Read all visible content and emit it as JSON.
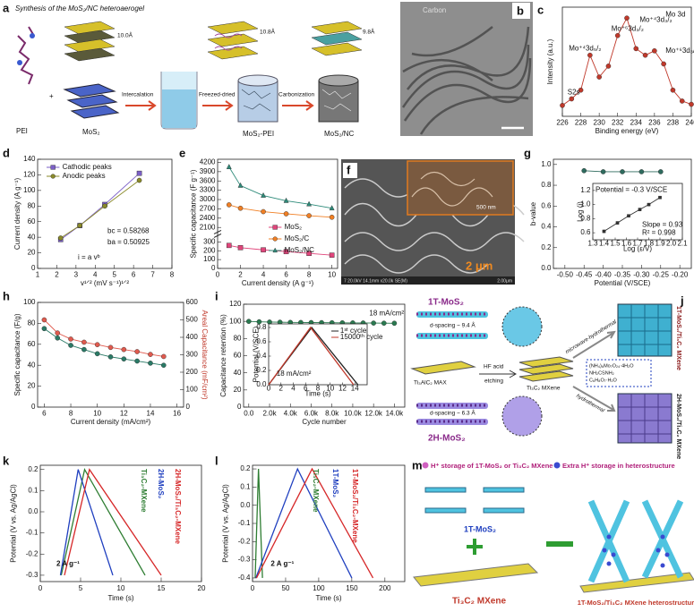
{
  "panels": {
    "a": {
      "label": "a",
      "title": "Synthesis of the MoS₂/NC heteroaerogel",
      "texts": [
        "PEI",
        "MoS₂",
        "10.0Å",
        "Intercalation",
        "Freezed-dried",
        "10.8Å",
        "MoS₂-PEI",
        "Carbonization",
        "9.8Å",
        "MoS₂/NC"
      ]
    },
    "b": {
      "label": "b",
      "texts": [
        "Carbon"
      ]
    },
    "f": {
      "label": "f",
      "texts": [
        "500 nm",
        "2 μm",
        "7 20.0kV 14.1mm x20.0k SE(M)",
        "2.00μm"
      ]
    },
    "j": {
      "label": "j",
      "texts": [
        "1T-MoS₂",
        "d-spacing ~ 9.4 Å",
        "Ti₃AlC₂ MAX",
        "HF acid",
        "etching",
        "Ti₃C₂ MXene",
        "microwave-hydrothermal",
        "(NH₄)₆Mo₇O₂₄·4H₂O",
        "NH₂CSNH₂",
        "C₆H₈O₇·H₂O",
        "hydrothermal",
        "2H-MoS₂",
        "d-spacing ~ 6.3 Å",
        "1T-MoS₂/Ti₃C₂ MXene",
        "2H-MoS₂/Ti₃C₂ MXene"
      ]
    },
    "m": {
      "label": "m",
      "texts": [
        "H⁺ storage of 1T-MoS₂ or Ti₃C₂ MXene",
        "Extra H⁺ storage in heterostructure",
        "1T-MoS₂",
        "Ti₃C₂ MXene",
        "1T-MoS₂/Ti₃C₂ MXene heterostructure"
      ]
    }
  },
  "chart_data": [
    {
      "type": "line",
      "panel": "c",
      "xlabel": "Binding energy (eV)",
      "ylabel": "Intensity (a.u.)",
      "xlim": [
        226,
        240
      ],
      "xticks": [
        226,
        228,
        230,
        232,
        234,
        236,
        238,
        240
      ],
      "ylim": [
        0,
        1
      ],
      "yticks": [],
      "annotations": [
        "Mo 3d",
        "S2s",
        "Mo⁺⁴3d₅/₂",
        "Mo⁺⁶3d₃/₂",
        "Mo⁺⁴3d₃/₂",
        "Mo⁺⁶3d₃/₂"
      ],
      "series": [
        {
          "color": "#c0392b",
          "marker": "circle",
          "x": [
            226,
            227,
            228,
            229,
            230,
            231,
            232,
            233,
            234,
            235,
            236,
            237,
            238,
            239,
            240
          ],
          "values": [
            0.1,
            0.16,
            0.24,
            0.56,
            0.36,
            0.46,
            0.74,
            0.9,
            0.62,
            0.56,
            0.6,
            0.48,
            0.24,
            0.14,
            0.11
          ]
        }
      ]
    },
    {
      "type": "line",
      "panel": "d",
      "xlabel": "v¹ᐟ² (mV s⁻¹)¹ᐟ²",
      "ylabel": "Current density (A g⁻¹)",
      "xlim": [
        1,
        8
      ],
      "xticks": [
        1,
        2,
        3,
        4,
        5,
        6,
        7,
        8
      ],
      "ylim": [
        0,
        140
      ],
      "yticks": [
        0,
        20,
        40,
        60,
        80,
        100,
        120,
        140
      ],
      "legend": "upper left",
      "annotations": [
        "bc = 0.58268",
        "ba = 0.50925",
        "i = a vᵇ"
      ],
      "series": [
        {
          "name": "Cathodic peaks",
          "color": "#7b5fc7",
          "marker": "square",
          "x": [
            2.2,
            3.2,
            4.5,
            6.3
          ],
          "values": [
            37,
            55,
            82,
            122
          ]
        },
        {
          "name": "Anodic peaks",
          "color": "#8a8a2a",
          "marker": "circle",
          "x": [
            2.2,
            3.2,
            4.5,
            6.3
          ],
          "values": [
            39,
            55,
            80,
            113
          ]
        }
      ]
    },
    {
      "type": "line",
      "panel": "e",
      "xlabel": "Current density (A g⁻¹)",
      "ylabel": "Specific capacitance (F g⁻¹)",
      "xlim": [
        0,
        10.5
      ],
      "xticks": [
        0,
        2,
        4,
        6,
        8,
        10
      ],
      "ylim": [
        0,
        330
      ],
      "yticks": [
        0,
        100,
        200,
        300
      ],
      "upper_ylim": [
        1950,
        4300
      ],
      "upper_yticks": [
        2100,
        2400,
        2700,
        3000,
        3300,
        3600,
        3900,
        4200
      ],
      "legend": "lower right",
      "series": [
        {
          "name": "MoS₂",
          "color": "#e0457b",
          "marker": "square",
          "x": [
            1,
            2,
            4,
            6,
            8,
            10
          ],
          "values": [
            260,
            235,
            210,
            190,
            170,
            150
          ]
        },
        {
          "name": "MoS₂/C",
          "color": "#f07f24",
          "marker": "circle",
          "x": [
            1,
            2,
            4,
            6,
            8,
            10
          ],
          "values": [
            2830,
            2720,
            2610,
            2540,
            2480,
            2430
          ]
        },
        {
          "name": "MoS₂/NC",
          "color": "#2e8b7a",
          "marker": "triangle",
          "x": [
            1,
            2,
            4,
            6,
            8,
            10
          ],
          "values": [
            4050,
            3450,
            3130,
            2960,
            2850,
            2720
          ]
        }
      ]
    },
    {
      "type": "line",
      "panel": "g",
      "xlabel": "Potential (V/SCE)",
      "ylabel": "b-value",
      "xlim": [
        -0.53,
        -0.17
      ],
      "xticks": [
        {
          "value": -0.5,
          "label": "-0.50"
        },
        {
          "value": -0.45,
          "label": "-0.45"
        },
        {
          "value": -0.4,
          "label": "-0.40"
        },
        {
          "value": -0.35,
          "label": "-0.35"
        },
        {
          "value": -0.3,
          "label": "-0.30"
        },
        {
          "value": -0.25,
          "label": "-0.25"
        },
        {
          "value": -0.2,
          "label": "-0.20"
        }
      ],
      "ylim": [
        0,
        1.05
      ],
      "yticks": [
        {
          "value": 0,
          "label": "0.0"
        },
        0.2,
        0.4,
        0.6,
        0.8,
        {
          "value": 1,
          "label": "1.0"
        }
      ],
      "series": [
        {
          "color": "#2e6b5e",
          "marker": "circle",
          "x": [
            -0.45,
            -0.4,
            -0.35,
            -0.3,
            -0.25
          ],
          "values": [
            0.94,
            0.93,
            0.93,
            0.93,
            0.93
          ]
        }
      ]
    },
    {
      "type": "line",
      "xlabel": "Log (ε/V)",
      "ylabel": "Log (i)",
      "xlim": [
        1.3,
        2.1
      ],
      "xticks": [
        1.3,
        1.4,
        1.5,
        1.6,
        1.7,
        1.8,
        1.9,
        {
          "value": 2,
          "label": "2.0"
        },
        2.1
      ],
      "ylim": [
        0.5,
        1.3
      ],
      "yticks": [
        0.6,
        0.8,
        {
          "value": 1,
          "label": "1.0"
        },
        1.2
      ],
      "annotations": [
        "Potential = -0.3 V/SCE",
        "Slope = 0.93",
        "R² = 0.998"
      ],
      "series": [
        {
          "color": "#333333",
          "marker": "square",
          "x": [
            1.4,
            1.52,
            1.62,
            1.72,
            1.8,
            1.9
          ],
          "values": [
            0.62,
            0.74,
            0.84,
            0.93,
            1.0,
            1.1
          ]
        }
      ]
    },
    {
      "type": "line",
      "panel": "h",
      "xlabel": "Current density (mA/cm²)",
      "ylabel": "Specific capacitance (F/g)",
      "y2label": "Areal Capacitance (mF/cm²)",
      "xlim": [
        5.5,
        16.5
      ],
      "xticks": [
        6,
        8,
        10,
        12,
        14,
        16
      ],
      "ylim": [
        0,
        100
      ],
      "yticks": [
        0,
        20,
        40,
        60,
        80,
        100
      ],
      "y2lim": [
        0,
        600
      ],
      "y2ticks": [
        0,
        100,
        200,
        300,
        400,
        500,
        600
      ],
      "series": [
        {
          "color": "#2a7a66",
          "marker": "circle",
          "x": [
            6,
            7,
            8,
            9,
            10,
            11,
            12,
            13,
            14,
            15
          ],
          "values": [
            75,
            66,
            59,
            55,
            51,
            48,
            46,
            44,
            42,
            40
          ]
        },
        {
          "color": "#e05a4e",
          "marker": "circle",
          "axis": "y2",
          "x": [
            6,
            7,
            8,
            9,
            10,
            11,
            12,
            13,
            14,
            15
          ],
          "values": [
            500,
            425,
            390,
            372,
            358,
            342,
            330,
            318,
            302,
            290
          ]
        }
      ]
    },
    {
      "type": "line",
      "panel": "i",
      "xlabel": "Cycle number",
      "ylabel": "Capacitance retention (%)",
      "xlim": [
        -500,
        15000
      ],
      "xticks": [
        {
          "value": 0,
          "label": "0.0"
        },
        {
          "value": 2000,
          "label": "2.0k"
        },
        {
          "value": 4000,
          "label": "4.0k"
        },
        {
          "value": 6000,
          "label": "6.0k"
        },
        {
          "value": 8000,
          "label": "8.0k"
        },
        {
          "value": 10000,
          "label": "10.0k"
        },
        {
          "value": 12000,
          "label": "12.0k"
        },
        {
          "value": 14000,
          "label": "14.0k"
        }
      ],
      "ylim": [
        0,
        120
      ],
      "yticks": [
        0,
        20,
        40,
        60,
        80,
        100,
        120
      ],
      "annotations": [
        "18 mA/cm²"
      ],
      "series": [
        {
          "color": "#2a7a50",
          "marker": "circle",
          "x": [
            0,
            1000,
            2000,
            3000,
            4000,
            5000,
            6000,
            7000,
            8000,
            9000,
            10000,
            11000,
            12000,
            13000,
            14000
          ],
          "values": [
            100,
            99.5,
            99.2,
            99,
            98.8,
            98.7,
            98.6,
            98.5,
            98.4,
            98.3,
            98.2,
            98.1,
            98,
            97.9,
            97.8
          ]
        }
      ]
    },
    {
      "type": "line",
      "xlabel": "Time (s)",
      "ylabel": "Potential (V/SCE)",
      "xlim": [
        0,
        16
      ],
      "xticks": [
        0,
        2,
        4,
        6,
        8,
        10,
        12,
        14
      ],
      "ylim": [
        0,
        0.85
      ],
      "yticks": [
        {
          "value": 0,
          "label": "0.0"
        },
        0.2,
        0.4,
        0.6,
        0.8
      ],
      "legend": "upper right",
      "annotations": [
        "18 mA/cm²"
      ],
      "series": [
        {
          "name": "1ˢᵗ cycle",
          "color": "#222222",
          "marker": "none",
          "x": [
            0,
            7,
            14.5
          ],
          "values": [
            0,
            0.8,
            0
          ]
        },
        {
          "name": "15000ᵗʰ cycle",
          "color": "#c0392b",
          "marker": "none",
          "x": [
            0,
            6.8,
            13.8
          ],
          "values": [
            0,
            0.8,
            0
          ]
        }
      ]
    },
    {
      "type": "line",
      "panel": "k",
      "xlabel": "Time (s)",
      "ylabel": "Potential (V vs. Ag/AgCl)",
      "xlim": [
        0,
        20
      ],
      "xticks": [
        0,
        5,
        10,
        15,
        20
      ],
      "ylim": [
        -0.33,
        0.22
      ],
      "yticks": [
        -0.3,
        -0.2,
        -0.1,
        {
          "value": 0,
          "label": "0.0"
        },
        0.1,
        0.2
      ],
      "annotations": [
        "2 A g⁻¹"
      ],
      "series": [
        {
          "name": "Ti₃C₂-MXene",
          "color": "#2e7d32",
          "marker": "none",
          "x": [
            2.6,
            5.5,
            13
          ],
          "values": [
            -0.3,
            0.2,
            -0.3
          ]
        },
        {
          "name": "2H-MoS₂",
          "color": "#1f3fbf",
          "marker": "none",
          "x": [
            2.5,
            4.7,
            9
          ],
          "values": [
            -0.3,
            0.2,
            -0.3
          ]
        },
        {
          "name": "2H-MoS₂/Ti₃C₂-MXene",
          "color": "#d62728",
          "marker": "none",
          "x": [
            3,
            6.1,
            15
          ],
          "values": [
            -0.3,
            0.2,
            -0.3
          ]
        }
      ]
    },
    {
      "type": "line",
      "panel": "l",
      "xlabel": "Time (s)",
      "ylabel": "Potential (V vs. Ag/AgCl)",
      "xlim": [
        0,
        230
      ],
      "xticks": [
        0,
        50,
        100,
        150,
        200
      ],
      "ylim": [
        -0.42,
        0.22
      ],
      "yticks": [
        -0.4,
        -0.3,
        -0.2,
        -0.1,
        {
          "value": 0,
          "label": "0.0"
        },
        0.1,
        0.2
      ],
      "annotations": [
        "2 A g⁻¹"
      ],
      "series": [
        {
          "name": "Ti₃C₂-MXene",
          "color": "#2e7d32",
          "marker": "none",
          "x": [
            4,
            9,
            15
          ],
          "values": [
            -0.4,
            0.2,
            -0.4
          ]
        },
        {
          "name": "1T-MoS₂",
          "color": "#1f3fbf",
          "marker": "none",
          "x": [
            5,
            68,
            150
          ],
          "values": [
            -0.4,
            0.2,
            -0.4
          ]
        },
        {
          "name": "1T-MoS₂/Ti₃C₂-MXene",
          "color": "#d62728",
          "marker": "none",
          "x": [
            6,
            90,
            182
          ],
          "values": [
            -0.4,
            0.2,
            -0.4
          ]
        }
      ]
    }
  ]
}
